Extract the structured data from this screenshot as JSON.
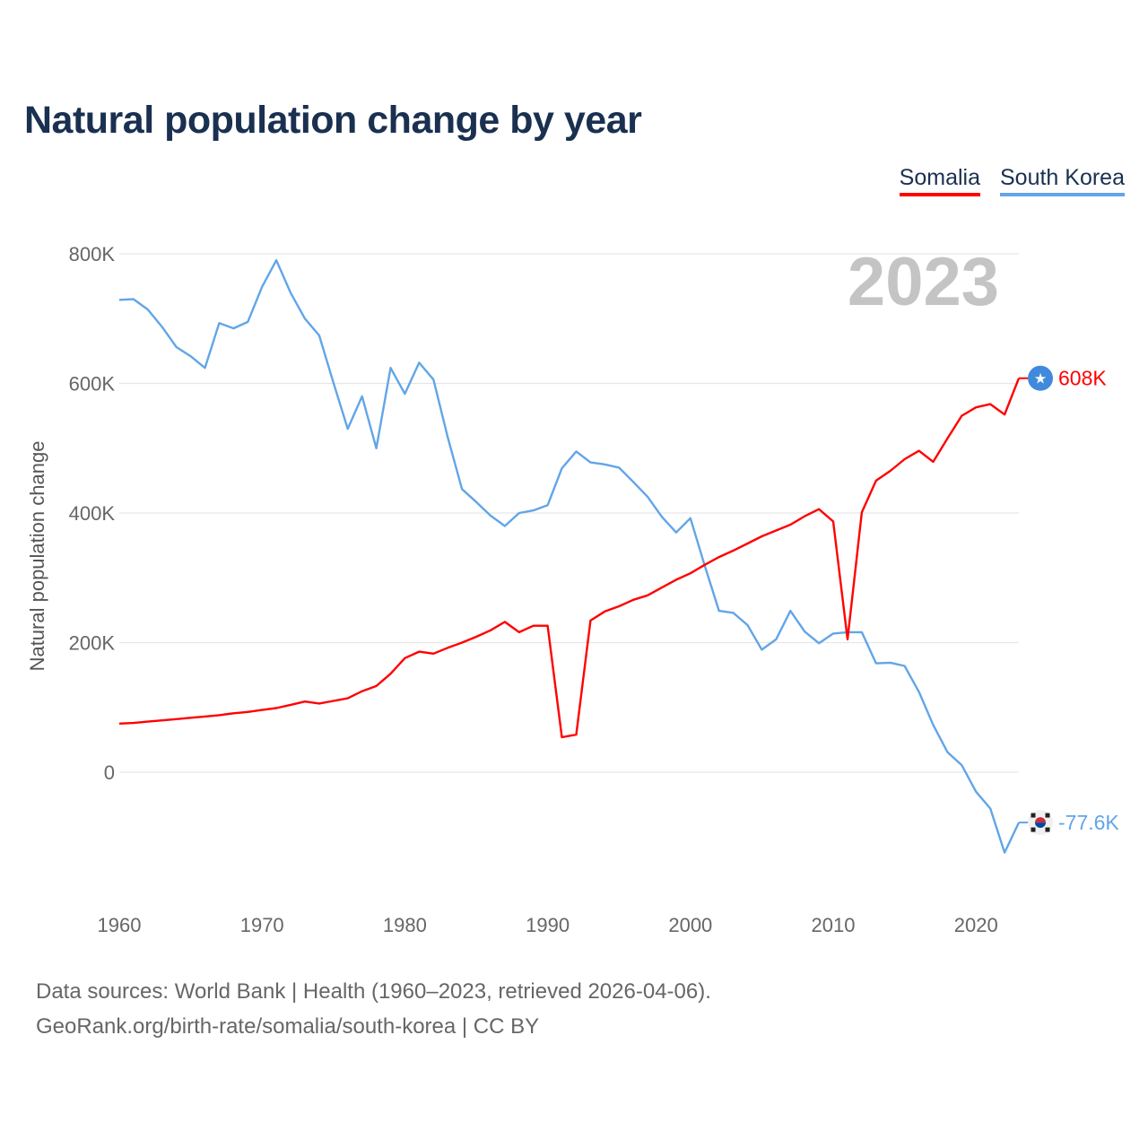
{
  "title": "Natural population change by year",
  "legend": [
    {
      "label": "Somalia",
      "color": "#ff0000"
    },
    {
      "label": "South Korea",
      "color": "#62a5e8"
    }
  ],
  "footer": {
    "line1": "Data sources: World Bank | Health (1960–2023, retrieved 2026-04-06).",
    "line2": "GeoRank.org/birth-rate/somalia/south-korea | CC BY"
  },
  "chart_data": {
    "type": "line",
    "title": "Natural population change by year",
    "xlabel": "",
    "ylabel": "Natural population change",
    "units": "thousands",
    "year_label": "2023",
    "ylim": [
      -150,
      800
    ],
    "xlim": [
      1960,
      2023
    ],
    "yticks": [
      {
        "value": 0,
        "label": "0"
      },
      {
        "value": 200,
        "label": "200K"
      },
      {
        "value": 400,
        "label": "400K"
      },
      {
        "value": 600,
        "label": "600K"
      },
      {
        "value": 800,
        "label": "800K"
      }
    ],
    "xticks": [
      {
        "value": 1960,
        "label": "1960"
      },
      {
        "value": 1970,
        "label": "1970"
      },
      {
        "value": 1980,
        "label": "1980"
      },
      {
        "value": 1990,
        "label": "1990"
      },
      {
        "value": 2000,
        "label": "2000"
      },
      {
        "value": 2010,
        "label": "2010"
      },
      {
        "value": 2020,
        "label": "2020"
      }
    ],
    "grid": true,
    "legend_position": "top-right",
    "x": [
      1960,
      1961,
      1962,
      1963,
      1964,
      1965,
      1966,
      1967,
      1968,
      1969,
      1970,
      1971,
      1972,
      1973,
      1974,
      1975,
      1976,
      1977,
      1978,
      1979,
      1980,
      1981,
      1982,
      1983,
      1984,
      1985,
      1986,
      1987,
      1988,
      1989,
      1990,
      1991,
      1992,
      1993,
      1994,
      1995,
      1996,
      1997,
      1998,
      1999,
      2000,
      2001,
      2002,
      2003,
      2004,
      2005,
      2006,
      2007,
      2008,
      2009,
      2010,
      2011,
      2012,
      2013,
      2014,
      2015,
      2016,
      2017,
      2018,
      2019,
      2020,
      2021,
      2022,
      2023
    ],
    "series": [
      {
        "name": "Somalia",
        "color": "#ff0000",
        "end_label": "608K",
        "flag": "somalia-flag",
        "values": [
          75,
          76,
          78,
          80,
          82,
          84,
          86,
          88,
          91,
          93,
          96,
          99,
          104,
          109,
          106,
          110,
          114,
          125,
          133,
          152,
          176,
          186,
          183,
          192,
          200,
          209,
          219,
          232,
          216,
          226,
          226,
          54,
          58,
          234,
          248,
          256,
          266,
          273,
          285,
          297,
          307,
          320,
          332,
          342,
          353,
          364,
          373,
          382,
          395,
          406,
          387,
          205,
          401,
          450,
          465,
          483,
          496,
          479,
          515,
          550,
          563,
          568,
          552,
          608
        ]
      },
      {
        "name": "South Korea",
        "color": "#62a5e8",
        "end_label": "-77.6K",
        "flag": "south-korea-flag",
        "values": [
          729,
          730,
          714,
          687,
          656,
          642,
          624,
          693,
          685,
          695,
          749,
          790,
          740,
          700,
          674,
          601,
          530,
          580,
          500,
          624,
          584,
          632,
          606,
          517,
          437,
          417,
          396,
          380,
          400,
          404,
          412,
          469,
          495,
          478,
          475,
          470,
          448,
          425,
          394,
          370,
          392,
          319,
          249,
          246,
          227,
          189,
          205,
          249,
          217,
          199,
          214,
          216,
          216,
          168,
          169,
          164,
          124,
          73,
          31,
          11,
          -30,
          -56,
          -124,
          -77.6
        ]
      }
    ]
  }
}
